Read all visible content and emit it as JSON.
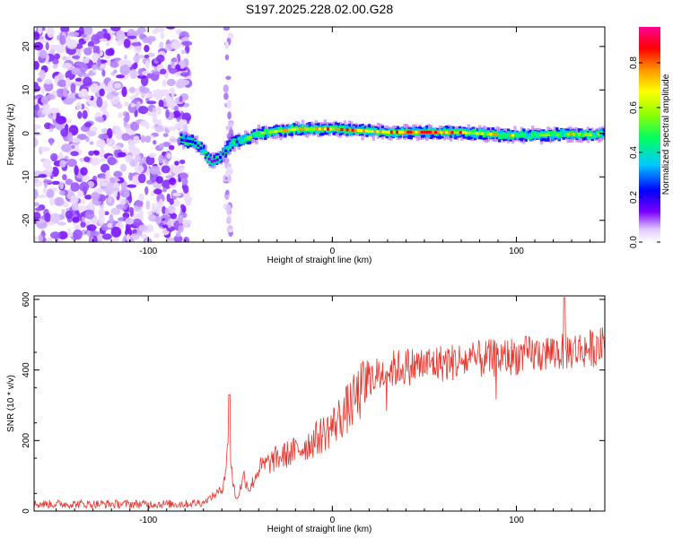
{
  "title": "S197.2025.228.02.00.G28",
  "chart_data": [
    {
      "type": "heatmap",
      "xlabel": "Height of straight line (km)",
      "ylabel": "Frequency (Hz)",
      "xlim": [
        -162,
        148
      ],
      "ylim": [
        -25,
        24.5
      ],
      "xticks": [
        -100,
        0,
        100
      ],
      "xtick_labels": [
        "-100",
        "0",
        "100"
      ],
      "yticks": [
        -20,
        -10,
        0,
        10,
        20
      ],
      "ytick_labels": [
        "-20",
        "-10",
        "0",
        "10",
        "20"
      ],
      "colorbar": {
        "label": "Normalized spectral amplitude",
        "range": [
          0,
          0.96
        ],
        "ticks": [
          0.0,
          0.2,
          0.4,
          0.6,
          0.8
        ],
        "tick_labels": [
          "0.0",
          "0.2",
          "0.4",
          "0.6",
          "0.8"
        ],
        "colormap": [
          "#ffffff",
          "#e8d8ff",
          "#7b00ff",
          "#0000ff",
          "#00ffff",
          "#00ff00",
          "#ffff00",
          "#ff7f00",
          "#ff0000",
          "#ff00ff"
        ]
      },
      "ridge": {
        "description_free_trace": true,
        "x": [
          -82,
          -75,
          -70,
          -66,
          -62,
          -58,
          -55,
          -50,
          -45,
          -40,
          -30,
          -20,
          -10,
          0,
          10,
          20,
          30,
          40,
          50,
          60,
          70,
          80,
          90,
          100,
          110,
          120,
          130,
          140,
          148
        ],
        "freq": [
          -1.5,
          -2,
          -4,
          -6.5,
          -6,
          -4,
          -2.5,
          -1.5,
          -1,
          0,
          0.5,
          1,
          1,
          1,
          0.8,
          0.5,
          0.3,
          0.3,
          0.3,
          0.2,
          0.2,
          0,
          -0.3,
          -0.5,
          -0.4,
          -0.3,
          -0.2,
          -0.3,
          -0.2
        ],
        "amplitude": [
          0.3,
          0.3,
          0.35,
          0.25,
          0.3,
          0.35,
          0.4,
          0.5,
          0.55,
          0.6,
          0.7,
          0.75,
          0.75,
          0.8,
          0.8,
          0.75,
          0.8,
          0.85,
          0.85,
          0.8,
          0.75,
          0.7,
          0.65,
          0.6,
          0.6,
          0.6,
          0.6,
          0.55,
          0.5
        ]
      },
      "noise_region_x": [
        -162,
        -58
      ]
    },
    {
      "type": "line",
      "xlabel": "Height of straight line (km)",
      "ylabel": "SNR (10 * v/v)",
      "xlim": [
        -162,
        148
      ],
      "ylim": [
        0,
        610
      ],
      "xticks": [
        -100,
        0,
        100
      ],
      "xtick_labels": [
        "-100",
        "0",
        "100"
      ],
      "yticks": [
        0,
        200,
        400,
        600
      ],
      "ytick_labels": [
        "0",
        "200",
        "400",
        "600"
      ],
      "series": [
        {
          "name": "SNR",
          "color": "#e8352e",
          "trend_x": [
            -162,
            -80,
            -70,
            -60,
            -58,
            -56,
            -54,
            -52,
            -48,
            -45,
            -40,
            -30,
            -20,
            -10,
            0,
            10,
            20,
            30,
            40,
            60,
            80,
            100,
            120,
            140,
            148
          ],
          "trend_y": [
            20,
            20,
            25,
            60,
            120,
            200,
            80,
            30,
            100,
            60,
            120,
            150,
            170,
            200,
            240,
            300,
            370,
            400,
            410,
            420,
            430,
            440,
            450,
            460,
            470
          ],
          "spikes": [
            {
              "x": -56,
              "y": 330
            },
            {
              "x": 126,
              "y": 605
            }
          ]
        }
      ]
    }
  ]
}
